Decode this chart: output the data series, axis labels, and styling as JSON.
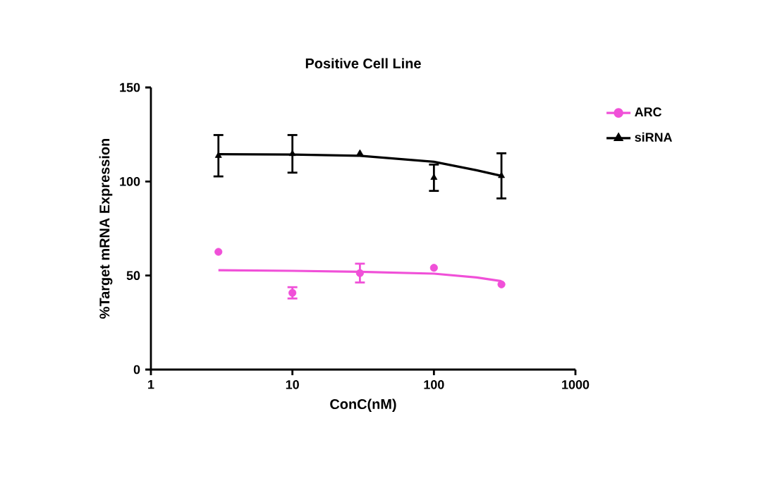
{
  "chart_data": {
    "type": "scatter",
    "title": "Positive Cell Line",
    "xlabel": "ConC(nM)",
    "ylabel": "%Target mRNA Expression",
    "log": "x",
    "xlim": [
      1,
      1000
    ],
    "xticks": [
      1,
      10,
      100,
      1000
    ],
    "ylim": [
      0,
      150
    ],
    "yticks": [
      0,
      50,
      100,
      150
    ],
    "grid": false,
    "legend": "right",
    "series": [
      {
        "name": "ARC",
        "marker": "circle",
        "color": "#f050d8",
        "x": [
          3,
          10,
          30,
          100,
          300
        ],
        "values": [
          62.6,
          40.8,
          51.3,
          54.1,
          45.3
        ],
        "errors": [
          null,
          3,
          5,
          null,
          null
        ]
      },
      {
        "name": "siRNA",
        "marker": "triangle",
        "color": "#000000",
        "x": [
          3,
          10,
          30,
          100,
          300
        ],
        "values": [
          113.7,
          114.7,
          115,
          102,
          103
        ],
        "errors": [
          11,
          10,
          null,
          7,
          12
        ]
      },
      {
        "type": "line",
        "marker": "none",
        "color": "#f050d8",
        "x": [
          3,
          10,
          30,
          100,
          200,
          300
        ],
        "values": [
          52.8,
          52.5,
          52,
          51,
          49,
          47
        ]
      },
      {
        "type": "line",
        "marker": "none",
        "color": "#000000",
        "x": [
          3,
          10,
          30,
          100,
          200,
          300
        ],
        "values": [
          114.5,
          114.3,
          113.7,
          110.5,
          106,
          103
        ]
      }
    ]
  }
}
